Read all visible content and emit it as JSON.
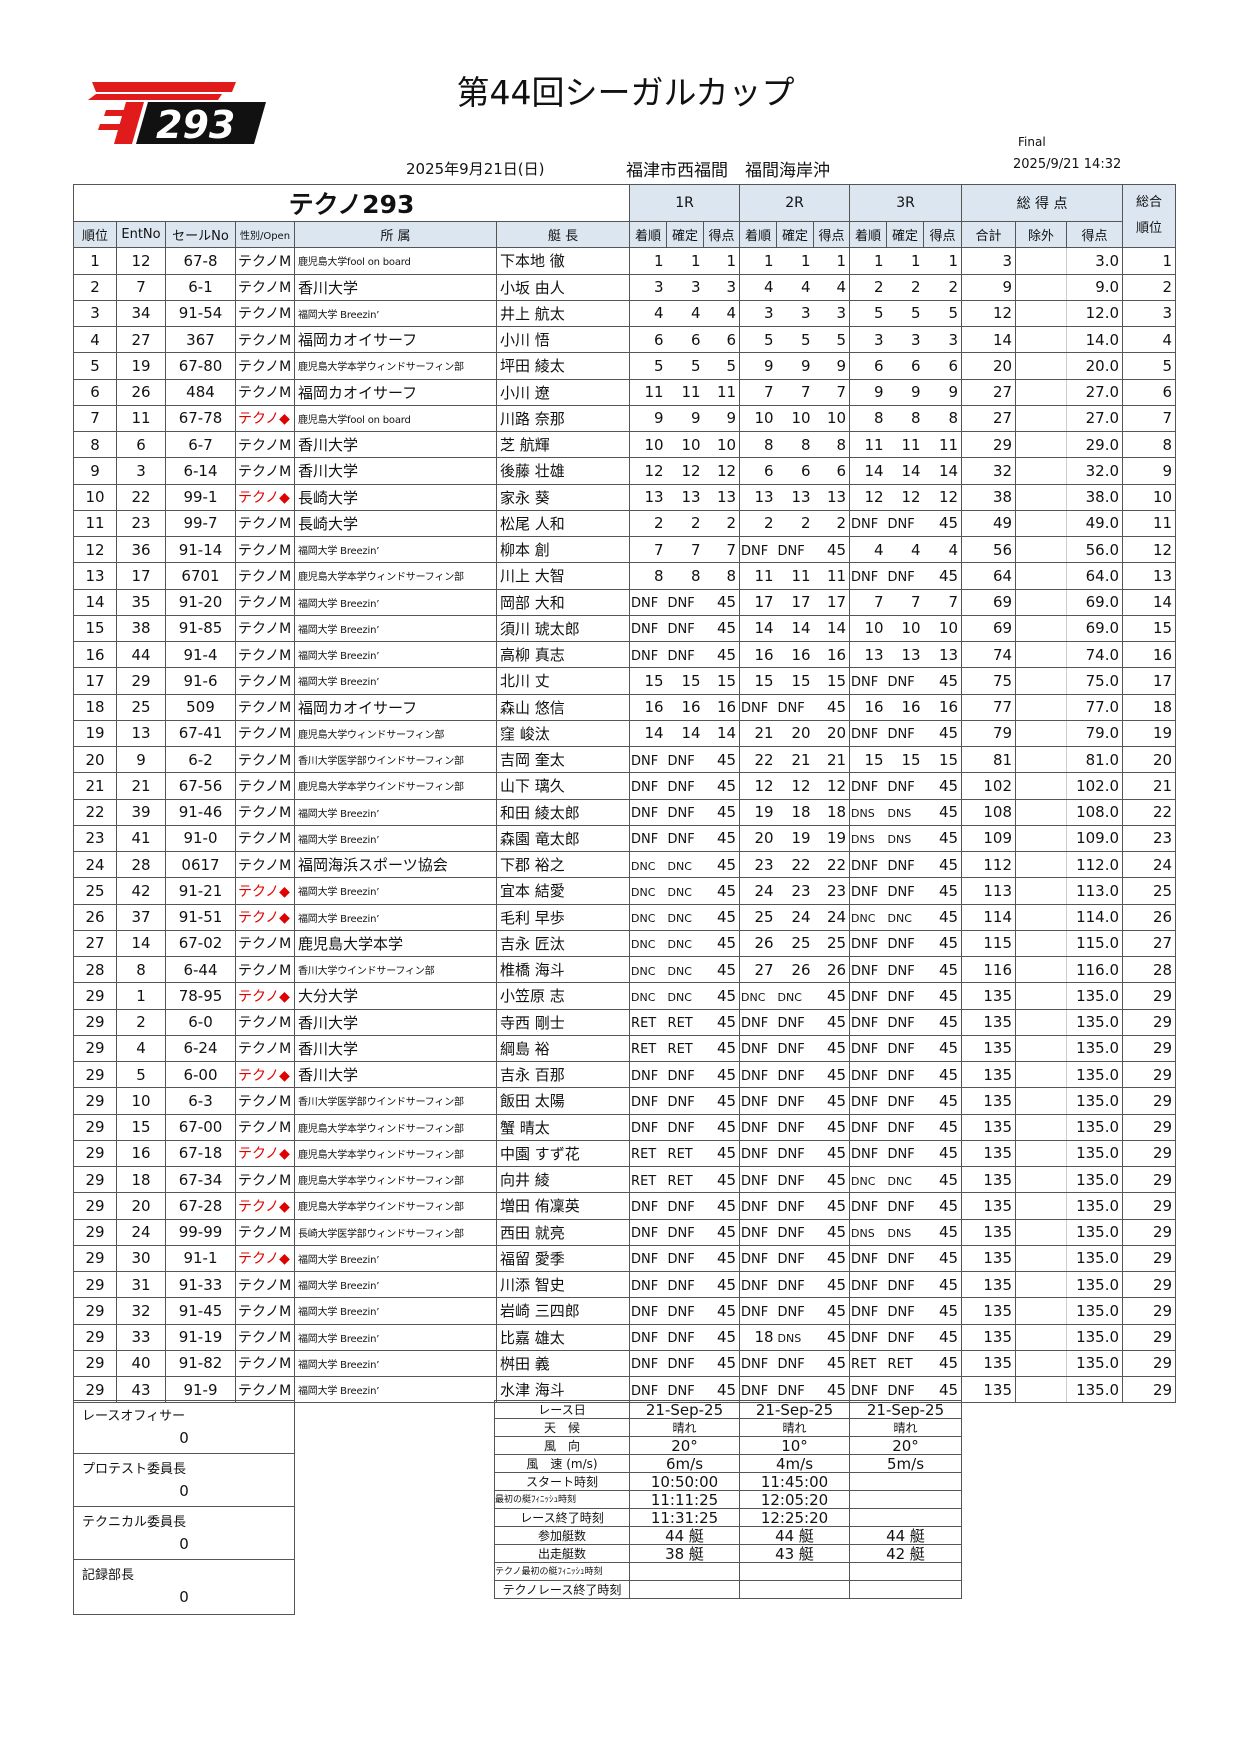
{
  "header": {
    "title": "第44回シーガルカップ",
    "logo_text": "293",
    "date": "2025年9月21日(日)",
    "location": "福津市西福間　福間海岸沖",
    "status": "Final",
    "timestamp": "2025/9/21 14:32",
    "brand_color": "#e11b1b"
  },
  "table": {
    "class_title": "テクノ293",
    "groups": [
      "1R",
      "2R",
      "3R",
      "総 得 点",
      "総合"
    ],
    "overall_rank_sub": "順位",
    "columns": [
      "順位",
      "EntNo",
      "セールNo",
      "性別/Open",
      "所 属",
      "艇 長",
      "着順",
      "確定",
      "得点",
      "着順",
      "確定",
      "得点",
      "着順",
      "確定",
      "得点",
      "合計",
      "除外",
      "得点"
    ],
    "women_color": "#e00000",
    "rows": [
      [
        "1",
        "12",
        "67-8",
        "テクノM",
        "鹿児島大学fool on board",
        "下本地 徹",
        "1",
        "1",
        "1",
        "1",
        "1",
        "1",
        "1",
        "1",
        "1",
        "3",
        "",
        "3.0",
        "1"
      ],
      [
        "2",
        "7",
        "6-1",
        "テクノM",
        "香川大学",
        "小坂 由人",
        "3",
        "3",
        "3",
        "4",
        "4",
        "4",
        "2",
        "2",
        "2",
        "9",
        "",
        "9.0",
        "2"
      ],
      [
        "3",
        "34",
        "91-54",
        "テクノM",
        "福岡大学 Breezin’",
        "井上 航太",
        "4",
        "4",
        "4",
        "3",
        "3",
        "3",
        "5",
        "5",
        "5",
        "12",
        "",
        "12.0",
        "3"
      ],
      [
        "4",
        "27",
        "367",
        "テクノM",
        "福岡カオイサーフ",
        "小川 悟",
        "6",
        "6",
        "6",
        "5",
        "5",
        "5",
        "3",
        "3",
        "3",
        "14",
        "",
        "14.0",
        "4"
      ],
      [
        "5",
        "19",
        "67-80",
        "テクノM",
        "鹿児島大学本学ウィンドサーフィン部",
        "坪田 綾太",
        "5",
        "5",
        "5",
        "9",
        "9",
        "9",
        "6",
        "6",
        "6",
        "20",
        "",
        "20.0",
        "5"
      ],
      [
        "6",
        "26",
        "484",
        "テクノM",
        "福岡カオイサーフ",
        "小川 遼",
        "11",
        "11",
        "11",
        "7",
        "7",
        "7",
        "9",
        "9",
        "9",
        "27",
        "",
        "27.0",
        "6"
      ],
      [
        "7",
        "11",
        "67-78",
        "テクノ◆",
        "鹿児島大学fool on board",
        "川路 奈那",
        "9",
        "9",
        "9",
        "10",
        "10",
        "10",
        "8",
        "8",
        "8",
        "27",
        "",
        "27.0",
        "7"
      ],
      [
        "8",
        "6",
        "6-7",
        "テクノM",
        "香川大学",
        "芝 航輝",
        "10",
        "10",
        "10",
        "8",
        "8",
        "8",
        "11",
        "11",
        "11",
        "29",
        "",
        "29.0",
        "8"
      ],
      [
        "9",
        "3",
        "6-14",
        "テクノM",
        "香川大学",
        "後藤 壮雄",
        "12",
        "12",
        "12",
        "6",
        "6",
        "6",
        "14",
        "14",
        "14",
        "32",
        "",
        "32.0",
        "9"
      ],
      [
        "10",
        "22",
        "99-1",
        "テクノ◆",
        "長崎大学",
        "家永 葵",
        "13",
        "13",
        "13",
        "13",
        "13",
        "13",
        "12",
        "12",
        "12",
        "38",
        "",
        "38.0",
        "10"
      ],
      [
        "11",
        "23",
        "99-7",
        "テクノM",
        "長崎大学",
        "松尾 人和",
        "2",
        "2",
        "2",
        "2",
        "2",
        "2",
        "DNF",
        "DNF",
        "45",
        "49",
        "",
        "49.0",
        "11"
      ],
      [
        "12",
        "36",
        "91-14",
        "テクノM",
        "福岡大学 Breezin’",
        "柳本 創",
        "7",
        "7",
        "7",
        "DNF",
        "DNF",
        "45",
        "4",
        "4",
        "4",
        "56",
        "",
        "56.0",
        "12"
      ],
      [
        "13",
        "17",
        "6701",
        "テクノM",
        "鹿児島大学本学ウィンドサーフィン部",
        "川上 大智",
        "8",
        "8",
        "8",
        "11",
        "11",
        "11",
        "DNF",
        "DNF",
        "45",
        "64",
        "",
        "64.0",
        "13"
      ],
      [
        "14",
        "35",
        "91-20",
        "テクノM",
        "福岡大学 Breezin’",
        "岡部 大和",
        "DNF",
        "DNF",
        "45",
        "17",
        "17",
        "17",
        "7",
        "7",
        "7",
        "69",
        "",
        "69.0",
        "14"
      ],
      [
        "15",
        "38",
        "91-85",
        "テクノM",
        "福岡大学 Breezin’",
        "須川 琥太郎",
        "DNF",
        "DNF",
        "45",
        "14",
        "14",
        "14",
        "10",
        "10",
        "10",
        "69",
        "",
        "69.0",
        "15"
      ],
      [
        "16",
        "44",
        "91-4",
        "テクノM",
        "福岡大学 Breezin’",
        "高柳 真志",
        "DNF",
        "DNF",
        "45",
        "16",
        "16",
        "16",
        "13",
        "13",
        "13",
        "74",
        "",
        "74.0",
        "16"
      ],
      [
        "17",
        "29",
        "91-6",
        "テクノM",
        "福岡大学 Breezin’",
        "北川 丈",
        "15",
        "15",
        "15",
        "15",
        "15",
        "15",
        "DNF",
        "DNF",
        "45",
        "75",
        "",
        "75.0",
        "17"
      ],
      [
        "18",
        "25",
        "509",
        "テクノM",
        "福岡カオイサーフ",
        "森山 悠信",
        "16",
        "16",
        "16",
        "DNF",
        "DNF",
        "45",
        "16",
        "16",
        "16",
        "77",
        "",
        "77.0",
        "18"
      ],
      [
        "19",
        "13",
        "67-41",
        "テクノM",
        "鹿児島大学ウィンドサーフィン部",
        "窪 峻汰",
        "14",
        "14",
        "14",
        "21",
        "20",
        "20",
        "DNF",
        "DNF",
        "45",
        "79",
        "",
        "79.0",
        "19"
      ],
      [
        "20",
        "9",
        "6-2",
        "テクノM",
        "香川大学医学部ウインドサーフィン部",
        "吉岡 奎太",
        "DNF",
        "DNF",
        "45",
        "22",
        "21",
        "21",
        "15",
        "15",
        "15",
        "81",
        "",
        "81.0",
        "20"
      ],
      [
        "21",
        "21",
        "67-56",
        "テクノM",
        "鹿児島大学本学ウインドサーフィン部",
        "山下 璃久",
        "DNF",
        "DNF",
        "45",
        "12",
        "12",
        "12",
        "DNF",
        "DNF",
        "45",
        "102",
        "",
        "102.0",
        "21"
      ],
      [
        "22",
        "39",
        "91-46",
        "テクノM",
        "福岡大学 Breezin’",
        "和田 綾太郎",
        "DNF",
        "DNF",
        "45",
        "19",
        "18",
        "18",
        "DNS",
        "DNS",
        "45",
        "108",
        "",
        "108.0",
        "22"
      ],
      [
        "23",
        "41",
        "91-0",
        "テクノM",
        "福岡大学 Breezin’",
        "森園 竜太郎",
        "DNF",
        "DNF",
        "45",
        "20",
        "19",
        "19",
        "DNS",
        "DNS",
        "45",
        "109",
        "",
        "109.0",
        "23"
      ],
      [
        "24",
        "28",
        "0617",
        "テクノM",
        "福岡海浜スポーツ協会",
        "下郡 裕之",
        "DNC",
        "DNC",
        "45",
        "23",
        "22",
        "22",
        "DNF",
        "DNF",
        "45",
        "112",
        "",
        "112.0",
        "24"
      ],
      [
        "25",
        "42",
        "91-21",
        "テクノ◆",
        "福岡大学 Breezin’",
        "宜本 結愛",
        "DNC",
        "DNC",
        "45",
        "24",
        "23",
        "23",
        "DNF",
        "DNF",
        "45",
        "113",
        "",
        "113.0",
        "25"
      ],
      [
        "26",
        "37",
        "91-51",
        "テクノ◆",
        "福岡大学 Breezin’",
        "毛利 早歩",
        "DNC",
        "DNC",
        "45",
        "25",
        "24",
        "24",
        "DNC",
        "DNC",
        "45",
        "114",
        "",
        "114.0",
        "26"
      ],
      [
        "27",
        "14",
        "67-02",
        "テクノM",
        "鹿児島大学本学",
        "吉永 匠汰",
        "DNC",
        "DNC",
        "45",
        "26",
        "25",
        "25",
        "DNF",
        "DNF",
        "45",
        "115",
        "",
        "115.0",
        "27"
      ],
      [
        "28",
        "8",
        "6-44",
        "テクノM",
        "香川大学ウインドサーフィン部",
        "椎橋 海斗",
        "DNC",
        "DNC",
        "45",
        "27",
        "26",
        "26",
        "DNF",
        "DNF",
        "45",
        "116",
        "",
        "116.0",
        "28"
      ],
      [
        "29",
        "1",
        "78-95",
        "テクノ◆",
        "大分大学",
        "小笠原 志",
        "DNC",
        "DNC",
        "45",
        "DNC",
        "DNC",
        "45",
        "DNF",
        "DNF",
        "45",
        "135",
        "",
        "135.0",
        "29"
      ],
      [
        "29",
        "2",
        "6-0",
        "テクノM",
        "香川大学",
        "寺西 剛士",
        "RET",
        "RET",
        "45",
        "DNF",
        "DNF",
        "45",
        "DNF",
        "DNF",
        "45",
        "135",
        "",
        "135.0",
        "29"
      ],
      [
        "29",
        "4",
        "6-24",
        "テクノM",
        "香川大学",
        "綱島 裕",
        "RET",
        "RET",
        "45",
        "DNF",
        "DNF",
        "45",
        "DNF",
        "DNF",
        "45",
        "135",
        "",
        "135.0",
        "29"
      ],
      [
        "29",
        "5",
        "6-00",
        "テクノ◆",
        "香川大学",
        "吉永 百那",
        "DNF",
        "DNF",
        "45",
        "DNF",
        "DNF",
        "45",
        "DNF",
        "DNF",
        "45",
        "135",
        "",
        "135.0",
        "29"
      ],
      [
        "29",
        "10",
        "6-3",
        "テクノM",
        "香川大学医学部ウインドサーフィン部",
        "飯田 太陽",
        "DNF",
        "DNF",
        "45",
        "DNF",
        "DNF",
        "45",
        "DNF",
        "DNF",
        "45",
        "135",
        "",
        "135.0",
        "29"
      ],
      [
        "29",
        "15",
        "67-00",
        "テクノM",
        "鹿児島大学本学ウィンドサーフィン部",
        "蟹 晴太",
        "DNF",
        "DNF",
        "45",
        "DNF",
        "DNF",
        "45",
        "DNF",
        "DNF",
        "45",
        "135",
        "",
        "135.0",
        "29"
      ],
      [
        "29",
        "16",
        "67-18",
        "テクノ◆",
        "鹿児島大学本学ウィンドサーフィン部",
        "中園 すず花",
        "RET",
        "RET",
        "45",
        "DNF",
        "DNF",
        "45",
        "DNF",
        "DNF",
        "45",
        "135",
        "",
        "135.0",
        "29"
      ],
      [
        "29",
        "18",
        "67-34",
        "テクノM",
        "鹿児島大学本学ウィンドサーフィン部",
        "向井 綾",
        "RET",
        "RET",
        "45",
        "DNF",
        "DNF",
        "45",
        "DNC",
        "DNC",
        "45",
        "135",
        "",
        "135.0",
        "29"
      ],
      [
        "29",
        "20",
        "67-28",
        "テクノ◆",
        "鹿児島大学本学ウインドサーフィン部",
        "増田 侑凜英",
        "DNF",
        "DNF",
        "45",
        "DNF",
        "DNF",
        "45",
        "DNF",
        "DNF",
        "45",
        "135",
        "",
        "135.0",
        "29"
      ],
      [
        "29",
        "24",
        "99-99",
        "テクノM",
        "長崎大学医学部ウィンドサーフィン部",
        "西田 就亮",
        "DNF",
        "DNF",
        "45",
        "DNF",
        "DNF",
        "45",
        "DNS",
        "DNS",
        "45",
        "135",
        "",
        "135.0",
        "29"
      ],
      [
        "29",
        "30",
        "91-1",
        "テクノ◆",
        "福岡大学 Breezin’",
        "福留 愛季",
        "DNF",
        "DNF",
        "45",
        "DNF",
        "DNF",
        "45",
        "DNF",
        "DNF",
        "45",
        "135",
        "",
        "135.0",
        "29"
      ],
      [
        "29",
        "31",
        "91-33",
        "テクノM",
        "福岡大学 Breezin’",
        "川添 智史",
        "DNF",
        "DNF",
        "45",
        "DNF",
        "DNF",
        "45",
        "DNF",
        "DNF",
        "45",
        "135",
        "",
        "135.0",
        "29"
      ],
      [
        "29",
        "32",
        "91-45",
        "テクノM",
        "福岡大学 Breezin’",
        "岩崎 三四郎",
        "DNF",
        "DNF",
        "45",
        "DNF",
        "DNF",
        "45",
        "DNF",
        "DNF",
        "45",
        "135",
        "",
        "135.0",
        "29"
      ],
      [
        "29",
        "33",
        "91-19",
        "テクノM",
        "福岡大学 Breezin’",
        "比嘉 雄太",
        "DNF",
        "DNF",
        "45",
        "18",
        "DNS",
        "45",
        "DNF",
        "DNF",
        "45",
        "135",
        "",
        "135.0",
        "29"
      ],
      [
        "29",
        "40",
        "91-82",
        "テクノM",
        "福岡大学 Breezin’",
        "桝田 義",
        "DNF",
        "DNF",
        "45",
        "DNF",
        "DNF",
        "45",
        "RET",
        "RET",
        "45",
        "135",
        "",
        "135.0",
        "29"
      ],
      [
        "29",
        "43",
        "91-9",
        "テクノM",
        "福岡大学 Breezin’",
        "水津 海斗",
        "DNF",
        "DNF",
        "45",
        "DNF",
        "DNF",
        "45",
        "DNF",
        "DNF",
        "45",
        "135",
        "",
        "135.0",
        "29"
      ]
    ]
  },
  "officials": [
    {
      "label": "レースオフィサー",
      "value": "0"
    },
    {
      "label": "プロテスト委員長",
      "value": "0"
    },
    {
      "label": "テクニカル委員長",
      "value": "0"
    },
    {
      "label": "記録部長",
      "value": "0"
    }
  ],
  "conditions": [
    {
      "label": "レース日",
      "values": [
        "21-Sep-25",
        "21-Sep-25",
        "21-Sep-25"
      ]
    },
    {
      "label": "天　候",
      "values": [
        "晴れ",
        "晴れ",
        "晴れ"
      ]
    },
    {
      "label": "風　向",
      "values": [
        "20°",
        "10°",
        "20°"
      ]
    },
    {
      "label": "風　速 (m/s)",
      "values": [
        "6m/s",
        "4m/s",
        "5m/s"
      ]
    },
    {
      "label": "スタート時刻",
      "values": [
        "10:50:00",
        "11:45:00",
        ""
      ]
    },
    {
      "label": "最初の艇ﾌｨﾆｯｼｭ時刻",
      "values": [
        "11:11:25",
        "12:05:20",
        ""
      ]
    },
    {
      "label": "レース終了時刻",
      "values": [
        "11:31:25",
        "12:25:20",
        ""
      ]
    },
    {
      "label": "参加艇数",
      "values": [
        "44 艇",
        "44 艇",
        "44 艇"
      ]
    },
    {
      "label": "出走艇数",
      "values": [
        "38 艇",
        "43 艇",
        "42 艇"
      ]
    },
    {
      "label": "テクノ最初の艇ﾌｨﾆｯｼｭ時刻",
      "values": [
        "",
        "",
        ""
      ]
    },
    {
      "label": "テクノレース終了時刻",
      "values": [
        "",
        "",
        ""
      ]
    }
  ]
}
